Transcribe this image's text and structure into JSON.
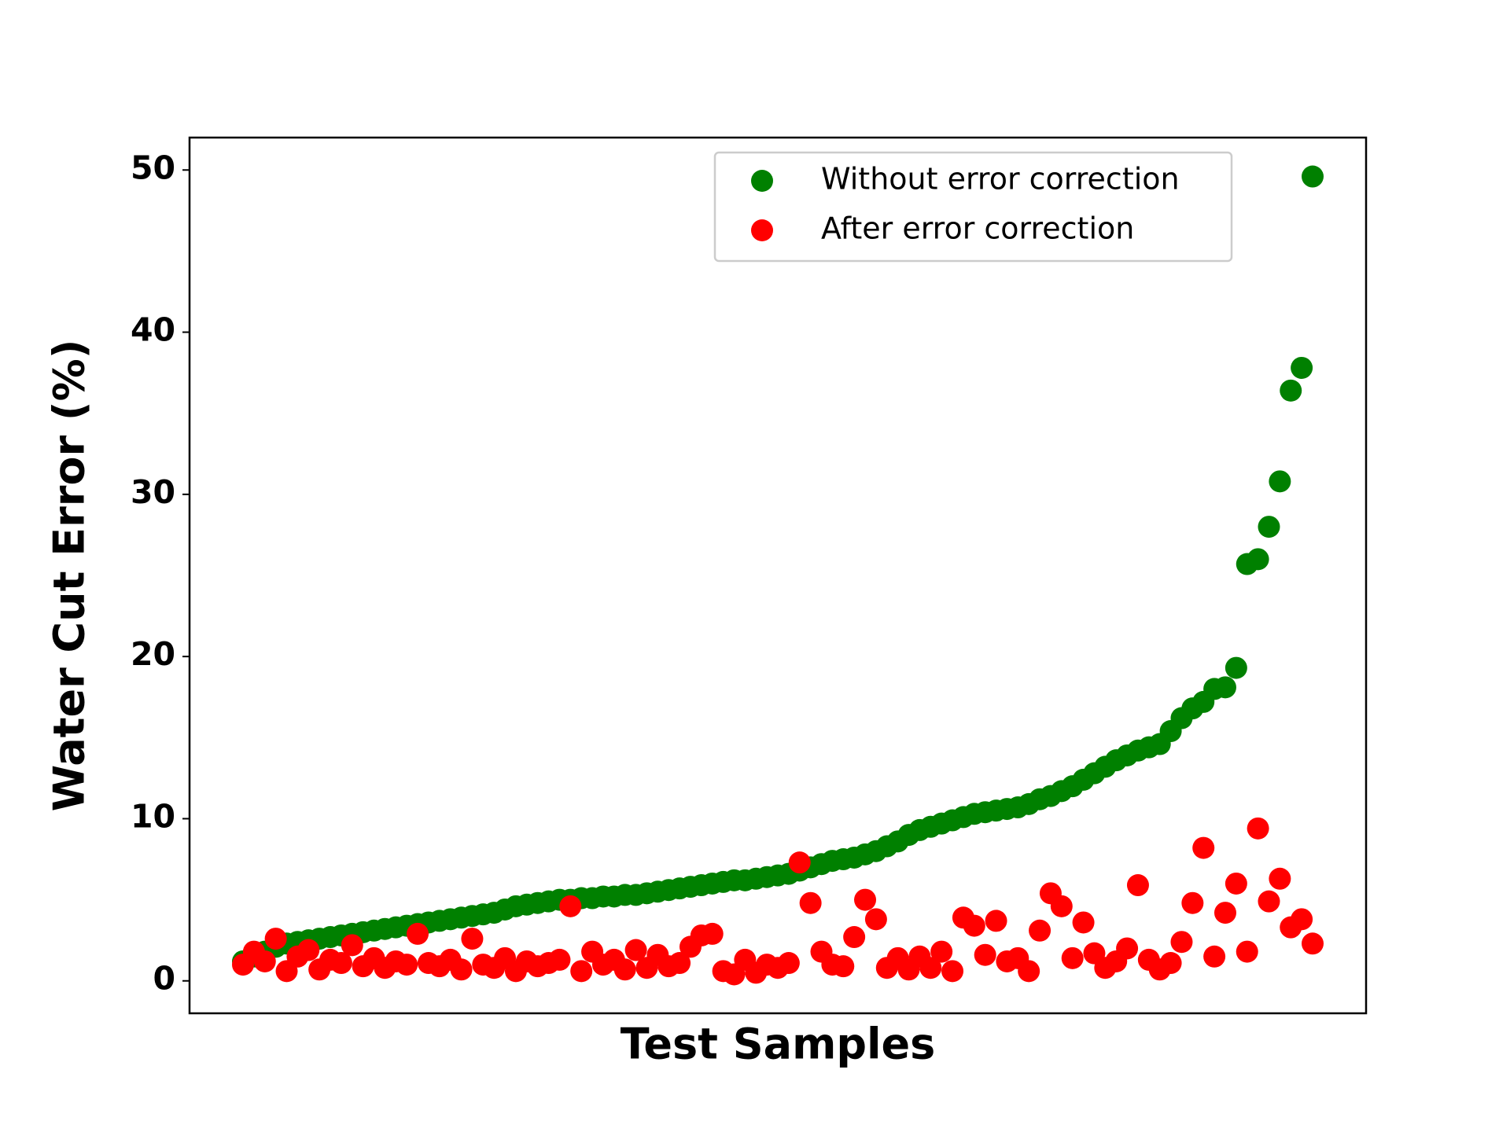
{
  "chart_data": {
    "type": "scatter",
    "xlabel": "Test Samples",
    "ylabel": "Water Cut Error (%)",
    "ylim": [
      -2,
      52
    ],
    "yticks": [
      0,
      10,
      20,
      30,
      40,
      50
    ],
    "legend": "upper right",
    "series": [
      {
        "name": "Without error correction",
        "color": "#008000",
        "values": [
          1.2,
          1.5,
          1.8,
          2.1,
          2.3,
          2.4,
          2.5,
          2.6,
          2.7,
          2.8,
          2.9,
          3.0,
          3.1,
          3.2,
          3.3,
          3.4,
          3.5,
          3.6,
          3.7,
          3.8,
          3.9,
          4.0,
          4.1,
          4.2,
          4.4,
          4.6,
          4.7,
          4.8,
          4.9,
          5.0,
          5.0,
          5.1,
          5.1,
          5.2,
          5.2,
          5.3,
          5.3,
          5.4,
          5.5,
          5.6,
          5.7,
          5.8,
          5.9,
          6.0,
          6.1,
          6.2,
          6.2,
          6.3,
          6.4,
          6.5,
          6.6,
          6.8,
          7.0,
          7.2,
          7.4,
          7.5,
          7.6,
          7.8,
          8.0,
          8.3,
          8.6,
          9.0,
          9.3,
          9.5,
          9.7,
          9.9,
          10.1,
          10.3,
          10.4,
          10.5,
          10.6,
          10.7,
          10.9,
          11.2,
          11.4,
          11.7,
          12.0,
          12.4,
          12.8,
          13.2,
          13.6,
          13.9,
          14.2,
          14.4,
          14.6,
          15.4,
          16.2,
          16.8,
          17.2,
          18.0,
          18.1,
          19.3,
          25.7,
          26.0,
          28.0,
          30.8,
          36.4,
          37.8,
          49.6
        ]
      },
      {
        "name": "After error correction",
        "color": "#ff0000",
        "values": [
          1.0,
          1.8,
          1.2,
          2.6,
          0.6,
          1.5,
          1.9,
          0.7,
          1.3,
          1.1,
          2.2,
          0.9,
          1.4,
          0.8,
          1.2,
          1.0,
          2.9,
          1.1,
          0.9,
          1.3,
          0.7,
          2.6,
          1.0,
          0.8,
          1.4,
          0.6,
          1.2,
          0.9,
          1.1,
          1.3,
          4.6,
          0.6,
          1.8,
          1.0,
          1.3,
          0.7,
          1.9,
          0.8,
          1.6,
          0.9,
          1.1,
          2.1,
          2.8,
          2.9,
          0.6,
          0.4,
          1.3,
          0.5,
          1.0,
          0.8,
          1.1,
          7.3,
          4.8,
          1.8,
          1.0,
          0.9,
          2.7,
          5.0,
          3.8,
          0.8,
          1.4,
          0.7,
          1.5,
          0.8,
          1.8,
          0.6,
          3.9,
          3.4,
          1.6,
          3.7,
          1.2,
          1.4,
          0.6,
          3.1,
          5.4,
          4.6,
          1.4,
          3.6,
          1.7,
          0.8,
          1.2,
          2.0,
          5.9,
          1.3,
          0.7,
          1.1,
          2.4,
          4.8,
          8.2,
          1.5,
          4.2,
          6.0,
          1.8,
          9.4,
          4.9,
          6.3,
          3.3,
          3.8,
          2.3
        ]
      }
    ]
  }
}
